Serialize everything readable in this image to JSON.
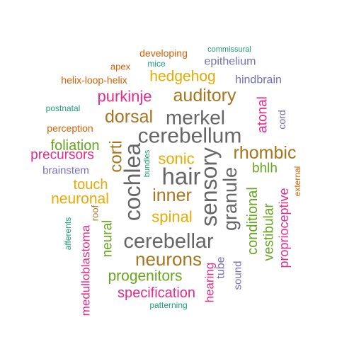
{
  "palette": {
    "green": "#1b9e77",
    "orange": "#d95f02",
    "purple": "#7570b3",
    "pink": "#e7298a",
    "lime": "#66a61e",
    "gold": "#e6ab02",
    "brown": "#a6761d",
    "gray": "#666666"
  },
  "words": [
    {
      "text": "commissural",
      "color": "green"
    },
    {
      "text": "developing",
      "color": "orange"
    },
    {
      "text": "epithelium",
      "color": "purple"
    },
    {
      "text": "apex",
      "color": "orange"
    },
    {
      "text": "mice",
      "color": "green"
    },
    {
      "text": "helix-loop-helix",
      "color": "orange"
    },
    {
      "text": "hedgehog",
      "color": "gold"
    },
    {
      "text": "hindbrain",
      "color": "purple"
    },
    {
      "text": "purkinje",
      "color": "pink"
    },
    {
      "text": "auditory",
      "color": "brown"
    },
    {
      "text": "postnatal",
      "color": "green"
    },
    {
      "text": "atonal",
      "color": "pink"
    },
    {
      "text": "dorsal",
      "color": "brown"
    },
    {
      "text": "merkel",
      "color": "gray"
    },
    {
      "text": "cord",
      "color": "purple"
    },
    {
      "text": "perception",
      "color": "orange"
    },
    {
      "text": "cerebellum",
      "color": "gray"
    },
    {
      "text": "foliation",
      "color": "lime"
    },
    {
      "text": "rhombic",
      "color": "brown"
    },
    {
      "text": "precursors",
      "color": "pink"
    },
    {
      "text": "corti",
      "color": "brown"
    },
    {
      "text": "sonic",
      "color": "gold"
    },
    {
      "text": "brainstem",
      "color": "purple"
    },
    {
      "text": "bundles",
      "color": "green"
    },
    {
      "text": "bhlh",
      "color": "lime"
    },
    {
      "text": "cochlea",
      "color": "gray"
    },
    {
      "text": "hair",
      "color": "gray"
    },
    {
      "text": "sensory",
      "color": "gray"
    },
    {
      "text": "granule",
      "color": "gray"
    },
    {
      "text": "touch",
      "color": "gold"
    },
    {
      "text": "external",
      "color": "orange"
    },
    {
      "text": "inner",
      "color": "brown"
    },
    {
      "text": "neuronal",
      "color": "gold"
    },
    {
      "text": "conditional",
      "color": "lime"
    },
    {
      "text": "roof",
      "color": "brown"
    },
    {
      "text": "proprioceptive",
      "color": "pink"
    },
    {
      "text": "spinal",
      "color": "gold"
    },
    {
      "text": "vestibular",
      "color": "lime"
    },
    {
      "text": "afferents",
      "color": "green"
    },
    {
      "text": "medulloblastoma",
      "color": "pink"
    },
    {
      "text": "neural",
      "color": "lime"
    },
    {
      "text": "cerebellar",
      "color": "gray"
    },
    {
      "text": "neurons",
      "color": "brown"
    },
    {
      "text": "tube",
      "color": "purple"
    },
    {
      "text": "sound",
      "color": "purple"
    },
    {
      "text": "progenitors",
      "color": "lime"
    },
    {
      "text": "hearing",
      "color": "pink"
    },
    {
      "text": "specification",
      "color": "pink"
    },
    {
      "text": "patterning",
      "color": "green"
    }
  ]
}
